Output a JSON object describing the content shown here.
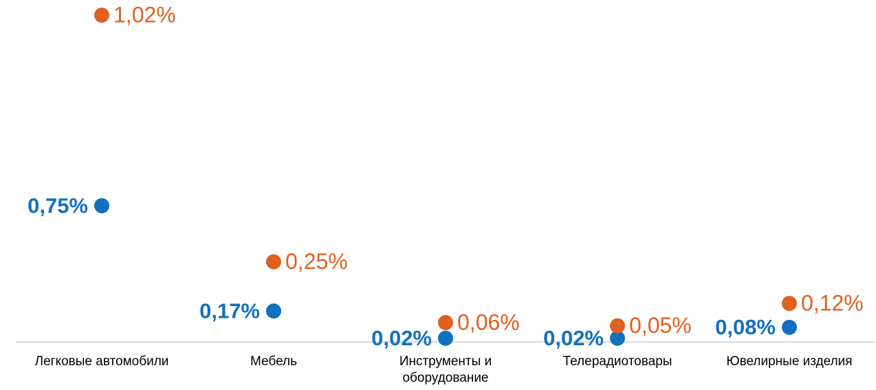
{
  "chart_data": {
    "type": "dot",
    "categories": [
      "Легковые автомобили",
      "Мебель",
      "Инструменты и оборудование",
      "Телерадиотовары",
      "Ювелирные изделия"
    ],
    "series": [
      {
        "name": null,
        "color": "#1170c0",
        "axis": "y2",
        "values": [
          0.75,
          0.17,
          0.02,
          0.02,
          0.08
        ],
        "value_labels": [
          "0,75%",
          "0,17%",
          "0,02%",
          "0,02%",
          "0,08%"
        ]
      },
      {
        "name": null,
        "color": "#e0601f",
        "values": [
          1.02,
          0.25,
          0.06,
          0.05,
          0.12
        ],
        "value_labels": [
          "1,02%",
          "0,25%",
          "0,06%",
          "0,05%",
          "0,12%"
        ]
      }
    ],
    "ylim": [
      0,
      1.02
    ],
    "y2lim": [
      0,
      1.8
    ]
  }
}
